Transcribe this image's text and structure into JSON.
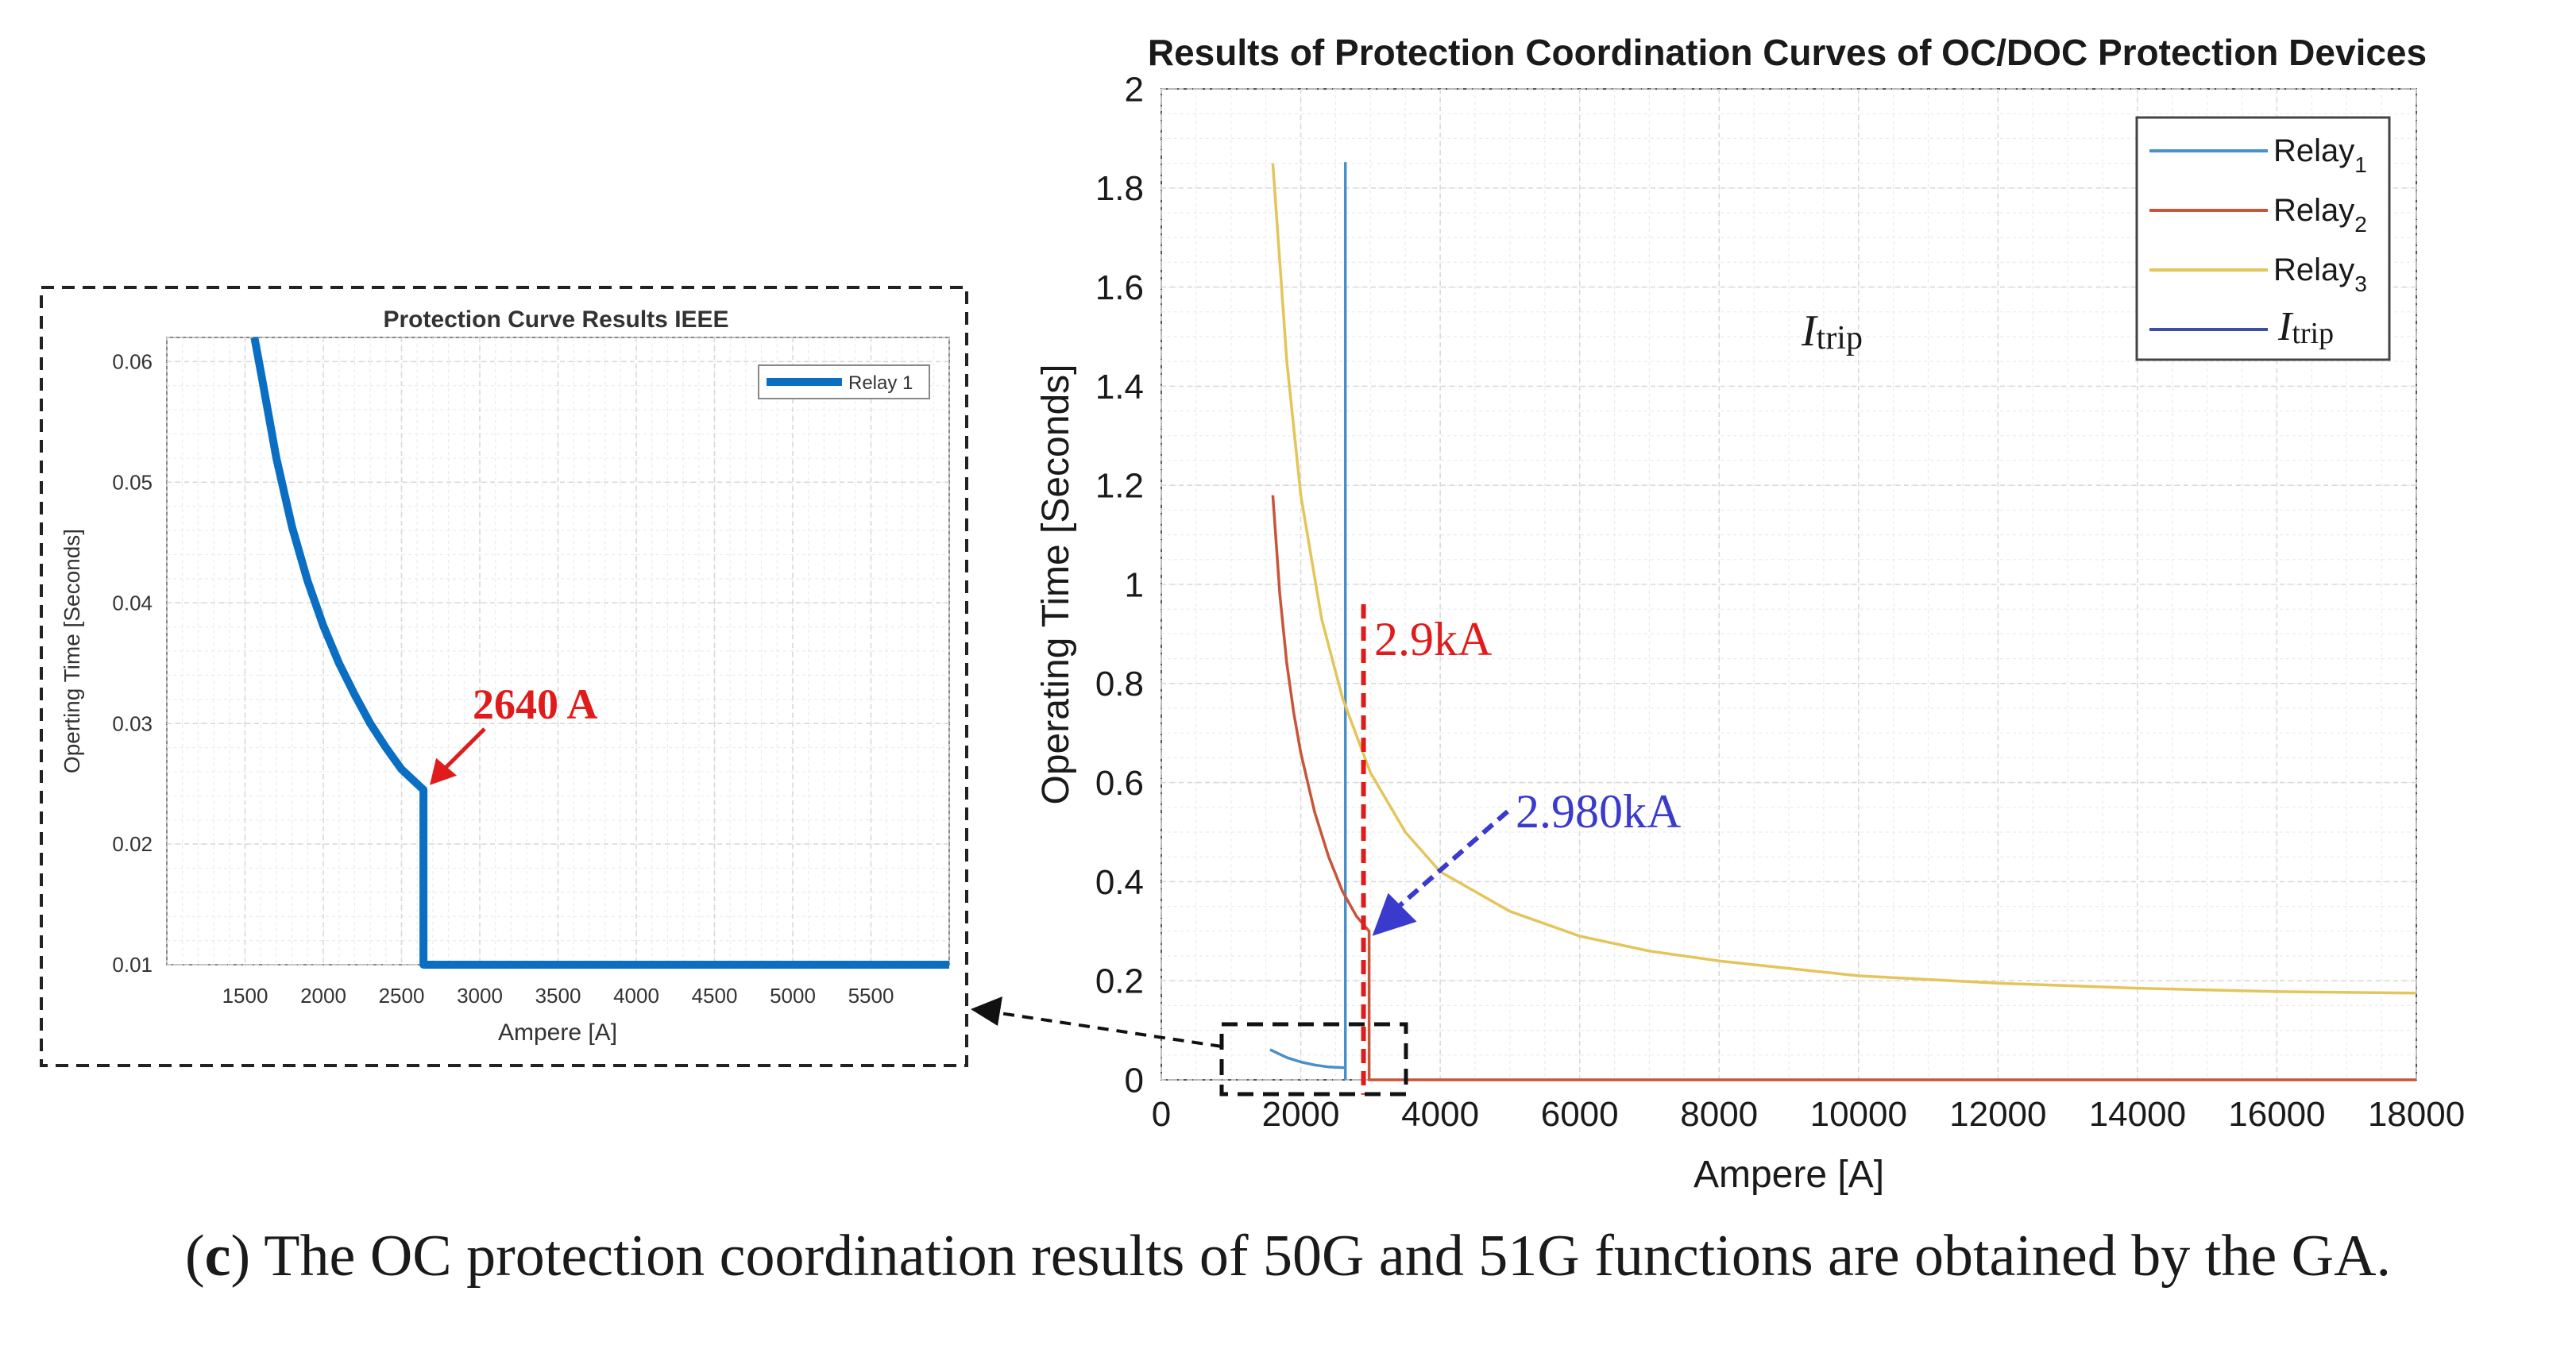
{
  "colors": {
    "relay1": "#4a90c8",
    "relay1_inset": "#0a6fc2",
    "relay2": "#c8553a",
    "relay3": "#e3c55a",
    "itrip": "#3b4fa6",
    "annotation_red": "#e01b1b",
    "annotation_blue": "#3a3acc",
    "grid": "#d9d9d9"
  },
  "caption": {
    "letter": "c",
    "open_paren": "(",
    "close_paren": ")",
    "text": " The OC protection coordination results of 50G and 51G functions are obtained by the GA."
  },
  "chart_data": [
    {
      "id": "main",
      "type": "line",
      "title": "Results of Protection Coordination Curves of OC/DOC Protection Devices",
      "xlabel": "Ampere [A]",
      "ylabel": "Operating Time [Seconds]",
      "xlim": [
        0,
        18000
      ],
      "ylim": [
        0,
        2
      ],
      "xticks": [
        0,
        2000,
        4000,
        6000,
        8000,
        10000,
        12000,
        14000,
        16000,
        18000
      ],
      "xtick_labels": [
        "0",
        "2000",
        "4000",
        "6000",
        "8000",
        "10000",
        "12000",
        "14000",
        "16000",
        "18000"
      ],
      "yticks": [
        0,
        0.2,
        0.4,
        0.6,
        0.8,
        1,
        1.2,
        1.4,
        1.6,
        1.8,
        2
      ],
      "ytick_labels": [
        "0",
        "0.2",
        "0.4",
        "0.6",
        "0.8",
        "1",
        "1.2",
        "1.4",
        "1.6",
        "1.8",
        "2"
      ],
      "grid": true,
      "legend": {
        "position": "top-right",
        "entries": [
          {
            "base": "Relay",
            "sub": "1",
            "series": "relay1"
          },
          {
            "base": "Relay",
            "sub": "2",
            "series": "relay2"
          },
          {
            "base": "Relay",
            "sub": "3",
            "series": "relay3"
          },
          {
            "base": "I",
            "sub": "trip",
            "series": "itrip",
            "italic": true
          }
        ]
      },
      "series": [
        {
          "name": "Relay1",
          "key": "relay1",
          "x": [
            1560,
            1800,
            2000,
            2200,
            2400,
            2640,
            2640,
            2640
          ],
          "y": [
            0.061,
            0.045,
            0.036,
            0.03,
            0.026,
            0.0245,
            1.85,
            0
          ]
        },
        {
          "name": "Relay2",
          "key": "relay2",
          "x": [
            1600,
            1700,
            1800,
            1900,
            2000,
            2200,
            2400,
            2600,
            2800,
            2980,
            2980,
            18000
          ],
          "y": [
            1.18,
            0.98,
            0.84,
            0.74,
            0.66,
            0.54,
            0.45,
            0.38,
            0.33,
            0.3,
            0.0,
            0.0
          ]
        },
        {
          "name": "Relay3",
          "key": "relay3",
          "x": [
            1600,
            1800,
            2000,
            2300,
            2600,
            3000,
            3500,
            4000,
            5000,
            6000,
            7000,
            8000,
            10000,
            12000,
            14000,
            16000,
            18000
          ],
          "y": [
            1.85,
            1.45,
            1.18,
            0.93,
            0.77,
            0.62,
            0.5,
            0.42,
            0.34,
            0.29,
            0.26,
            0.24,
            0.21,
            0.195,
            0.185,
            0.178,
            0.175
          ]
        }
      ],
      "annotations": [
        {
          "text": "I",
          "sub": "trip"
        },
        {
          "text": "2.9kA",
          "x": 2900
        },
        {
          "text": "2.980kA",
          "x": 2980,
          "y": 0.3
        }
      ]
    },
    {
      "id": "inset",
      "type": "line",
      "title": "Protection Curve Results IEEE",
      "xlabel": "Ampere [A]",
      "ylabel": "Operting Time [Seconds]",
      "xlim": [
        1000,
        6000
      ],
      "ylim": [
        0.01,
        0.062
      ],
      "xticks": [
        1500,
        2000,
        2500,
        3000,
        3500,
        4000,
        4500,
        5000,
        5500
      ],
      "xtick_labels": [
        "1500",
        "2000",
        "2500",
        "3000",
        "3500",
        "4000",
        "4500",
        "5000",
        "5500"
      ],
      "yticks": [
        0.01,
        0.02,
        0.03,
        0.04,
        0.05,
        0.06
      ],
      "ytick_labels": [
        "0.01",
        "0.02",
        "0.03",
        "0.04",
        "0.05",
        "0.06"
      ],
      "grid": true,
      "legend": {
        "position": "top-right",
        "entries": [
          {
            "base": "Relay 1",
            "series": "relay1_inset"
          }
        ]
      },
      "series": [
        {
          "name": "Relay 1",
          "key": "relay1_inset",
          "x": [
            1560,
            1600,
            1700,
            1800,
            1900,
            2000,
            2100,
            2200,
            2300,
            2400,
            2500,
            2640,
            2640,
            2640,
            6000
          ],
          "y": [
            0.0625,
            0.0592,
            0.052,
            0.0463,
            0.0418,
            0.0381,
            0.035,
            0.0324,
            0.03,
            0.028,
            0.0262,
            0.0245,
            0.0245,
            0.01,
            0.01
          ]
        }
      ],
      "annotations": [
        {
          "text": "2640 A",
          "x": 2640,
          "y": 0.0245
        }
      ]
    }
  ]
}
